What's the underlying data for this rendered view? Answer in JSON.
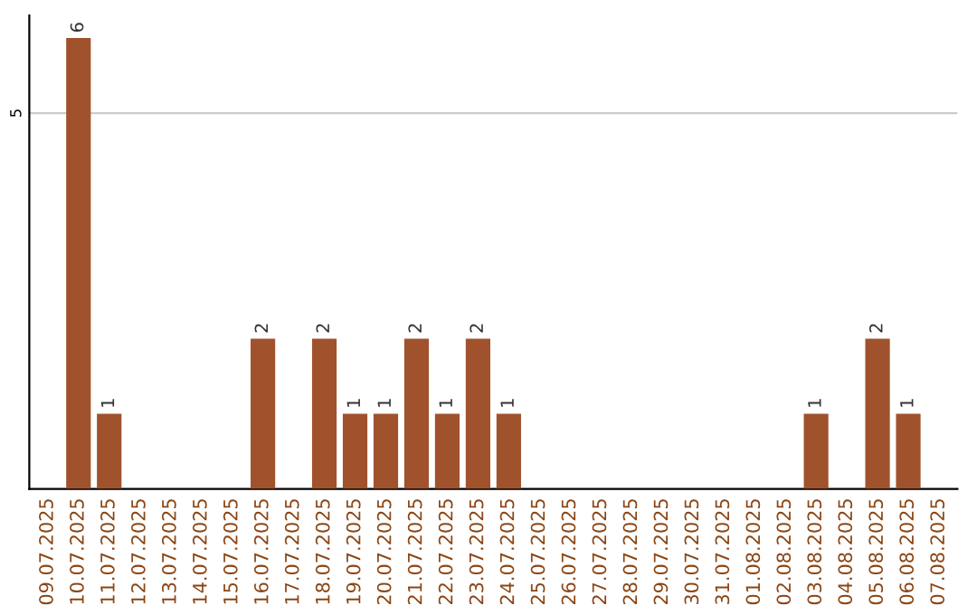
{
  "chart_data": {
    "type": "bar",
    "categories": [
      "09.07.2025",
      "10.07.2025",
      "11.07.2025",
      "12.07.2025",
      "13.07.2025",
      "14.07.2025",
      "15.07.2025",
      "16.07.2025",
      "17.07.2025",
      "18.07.2025",
      "19.07.2025",
      "20.07.2025",
      "21.07.2025",
      "22.07.2025",
      "23.07.2025",
      "24.07.2025",
      "25.07.2025",
      "26.07.2025",
      "27.07.2025",
      "28.07.2025",
      "29.07.2025",
      "30.07.2025",
      "31.07.2025",
      "01.08.2025",
      "02.08.2025",
      "03.08.2025",
      "04.08.2025",
      "05.08.2025",
      "06.08.2025",
      "07.08.2025"
    ],
    "values": [
      null,
      6,
      1,
      null,
      null,
      null,
      null,
      2,
      null,
      2,
      1,
      1,
      2,
      1,
      2,
      1,
      null,
      null,
      null,
      null,
      null,
      null,
      null,
      null,
      null,
      1,
      null,
      2,
      1,
      null
    ],
    "color": "#a0522d",
    "ylim": [
      0,
      6.3
    ],
    "yticks": [
      5
    ],
    "grid": "y",
    "data_labels": true
  }
}
